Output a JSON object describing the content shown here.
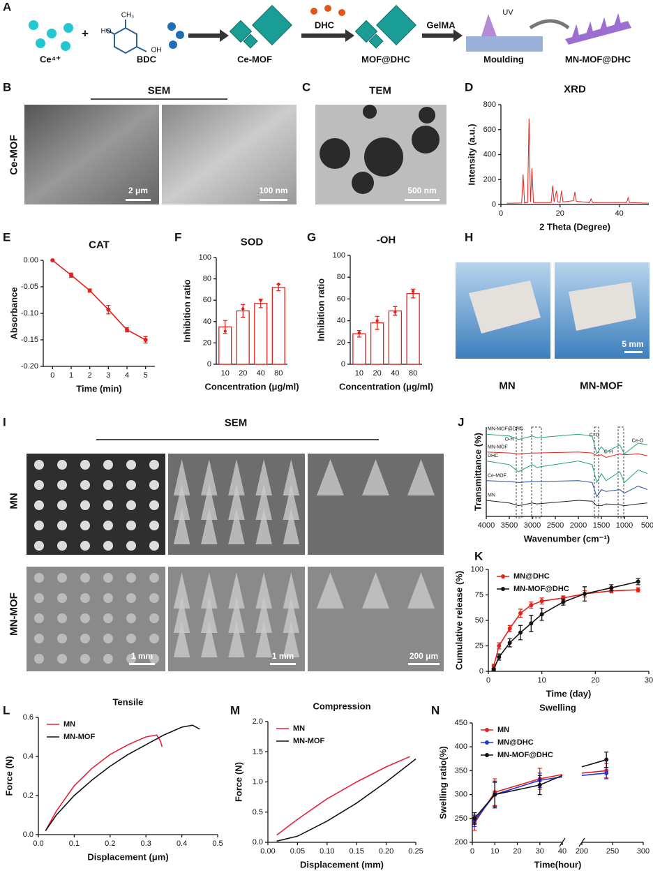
{
  "panel_labels": [
    "A",
    "B",
    "C",
    "D",
    "E",
    "F",
    "G",
    "H",
    "I",
    "J",
    "K",
    "L",
    "M",
    "N"
  ],
  "schematic": {
    "ion": "Ce⁴⁺",
    "plus": "+",
    "linker": "BDC",
    "linker_groups": [
      "HO",
      "CH₃",
      "OH"
    ],
    "mof": "Ce-MOF",
    "drug": "DHC",
    "loaded": "MOF@DHC",
    "matrix": "GelMA",
    "uv": "UV",
    "step": "Moulding",
    "product": "MN-MOF@DHC"
  },
  "sem_panel": {
    "title": "SEM",
    "row_label": "Ce-MOF",
    "scales": [
      "2 μm",
      "100 nm"
    ]
  },
  "tem_panel": {
    "title": "TEM",
    "scale": "500 nm"
  },
  "photo_panel": {
    "labels": [
      "MN",
      "MN-MOF"
    ],
    "scale": "5 mm"
  },
  "mn_sem_panel": {
    "title": "SEM",
    "rows": [
      "MN",
      "MN-MOF"
    ],
    "scales": [
      "1 mm",
      "1 mm",
      "200 μm"
    ]
  },
  "chart_data": [
    {
      "type": "line",
      "title": "XRD",
      "xlabel": "2 Theta (Degree)",
      "ylabel": "Intensity (a.u.)",
      "xlim": [
        0,
        50
      ],
      "xticks": [
        0,
        20,
        40
      ],
      "ylim": [
        0,
        800
      ],
      "yticks": [
        0,
        200,
        400,
        600,
        800
      ],
      "x": [
        2,
        7,
        7.5,
        8,
        9,
        9.5,
        10,
        10.5,
        11,
        17,
        17.5,
        18,
        18.8,
        19.2,
        20,
        20.5,
        21,
        24.5,
        25,
        25.5,
        30,
        30.5,
        31,
        42.5,
        43,
        43.5,
        50
      ],
      "series": [
        {
          "color": "#e8201a",
          "values": [
            10,
            12,
            240,
            12,
            15,
            690,
            20,
            290,
            15,
            15,
            150,
            20,
            110,
            20,
            15,
            110,
            20,
            30,
            100,
            25,
            15,
            45,
            15,
            15,
            55,
            15,
            10
          ]
        }
      ]
    },
    {
      "type": "line",
      "title": "CAT",
      "xlabel": "Time (min)",
      "ylabel": "Absorbance",
      "xlim": [
        -0.5,
        5.5
      ],
      "xticks": [
        0,
        1,
        2,
        3,
        4,
        5
      ],
      "ylim": [
        -0.2,
        0
      ],
      "yticks": [
        {
          "value": 0,
          "label": "0.00"
        },
        {
          "value": -0.05,
          "label": "-0.05"
        },
        {
          "value": -0.1,
          "label": "-0.10"
        },
        {
          "value": -0.15,
          "label": "-0.15"
        },
        {
          "value": -0.2,
          "label": "-0.20"
        }
      ],
      "markers": true,
      "x": [
        0,
        1,
        2,
        3,
        4,
        5
      ],
      "series": [
        {
          "color": "#e8201a",
          "values": [
            0,
            -0.028,
            -0.057,
            -0.093,
            -0.131,
            -0.15
          ],
          "errors": [
            0.001,
            0.004,
            0.003,
            0.008,
            0.004,
            0.006
          ]
        }
      ]
    },
    {
      "type": "bar",
      "title": "SOD",
      "xlabel": "Concentration (μg/ml)",
      "ylabel": "Inhibition ratio",
      "categories": [
        "10",
        "20",
        "40",
        "80"
      ],
      "values": [
        35,
        50,
        57,
        72
      ],
      "errors": [
        6,
        6,
        4,
        3
      ],
      "points": [
        31,
        52,
        60,
        75
      ],
      "color": "#e8201a",
      "ylim": [
        0,
        100
      ],
      "yticks": [
        0,
        20,
        40,
        60,
        80,
        100
      ]
    },
    {
      "type": "bar",
      "title": "-OH",
      "xlabel": "Concentration (μg/ml)",
      "ylabel": "Inhibition ratio",
      "categories": [
        "10",
        "20",
        "40",
        "80"
      ],
      "values": [
        28,
        38,
        49,
        65
      ],
      "errors": [
        3,
        6,
        4,
        4
      ],
      "points": [
        29,
        40,
        48,
        67
      ],
      "color": "#e8201a",
      "ylim": [
        0,
        100
      ],
      "yticks": [
        0,
        20,
        40,
        60,
        80,
        100
      ]
    },
    {
      "type": "line",
      "xlabel": "Time (day)",
      "ylabel": "Cumulative release (%)",
      "xlim": [
        0,
        30
      ],
      "xticks": [
        0,
        10,
        20,
        30
      ],
      "ylim": [
        0,
        100
      ],
      "yticks": [
        0,
        25,
        50,
        75,
        100
      ],
      "legend": "top-left",
      "markers": true,
      "x": [
        1,
        2,
        4,
        6,
        8,
        10,
        14,
        18,
        23,
        28
      ],
      "series": [
        {
          "name": "MN@DHC",
          "color": "#e8201a",
          "values": [
            5,
            25,
            42,
            57,
            65,
            69,
            72,
            76,
            79,
            80
          ],
          "errors": [
            2,
            3,
            3,
            4,
            3,
            3,
            2,
            3,
            2,
            2
          ]
        },
        {
          "name": "MN-MOF@DHC",
          "color": "#111111",
          "values": [
            2,
            14,
            28,
            38,
            47,
            56,
            68,
            76,
            82,
            88
          ],
          "errors": [
            1,
            3,
            4,
            7,
            8,
            6,
            3,
            7,
            3,
            3
          ]
        }
      ]
    },
    {
      "type": "line",
      "title": "Tensile",
      "xlabel": "Displacement (μm)",
      "ylabel": "Force (N)",
      "xlim": [
        0,
        0.5
      ],
      "xticks": [
        {
          "value": 0,
          "label": "0.0"
        },
        0.1,
        0.2,
        0.3,
        0.4,
        0.5
      ],
      "ylim": [
        0,
        0.6
      ],
      "yticks": [
        {
          "value": 0,
          "label": "0.0"
        },
        0.2,
        0.4,
        0.6
      ],
      "legend": "top-left",
      "series": [
        {
          "name": "MN",
          "color": "#e8203a",
          "x": [
            0.02,
            0.05,
            0.1,
            0.15,
            0.2,
            0.25,
            0.3,
            0.33,
            0.34,
            0.345
          ],
          "values": [
            0.02,
            0.12,
            0.25,
            0.34,
            0.41,
            0.46,
            0.5,
            0.51,
            0.48,
            0.45
          ]
        },
        {
          "name": "MN-MOF",
          "color": "#111111",
          "x": [
            0.02,
            0.05,
            0.1,
            0.15,
            0.2,
            0.25,
            0.3,
            0.35,
            0.4,
            0.43,
            0.45
          ],
          "values": [
            0.02,
            0.1,
            0.2,
            0.28,
            0.35,
            0.41,
            0.46,
            0.51,
            0.55,
            0.56,
            0.54
          ]
        }
      ]
    },
    {
      "type": "line",
      "title": "Compression",
      "xlabel": "Displacement (mm)",
      "ylabel": "Force (N)",
      "xlim": [
        0,
        0.25
      ],
      "xticks": [
        {
          "value": 0,
          "label": "0.00"
        },
        0.05,
        {
          "value": 0.1,
          "label": "0.10"
        },
        0.15,
        {
          "value": 0.2,
          "label": "0.20"
        },
        0.25
      ],
      "ylim": [
        0,
        2
      ],
      "yticks": [
        {
          "value": 0,
          "label": "0.0"
        },
        0.5,
        {
          "value": 1,
          "label": "1.0"
        },
        1.5,
        {
          "value": 2,
          "label": "2.0"
        }
      ],
      "legend": "top-left",
      "series": [
        {
          "name": "MN",
          "color": "#e8203a",
          "x": [
            0.015,
            0.05,
            0.1,
            0.15,
            0.2,
            0.24
          ],
          "values": [
            0.12,
            0.38,
            0.72,
            1.0,
            1.25,
            1.42
          ]
        },
        {
          "name": "MN-MOF",
          "color": "#111111",
          "x": [
            0.015,
            0.05,
            0.1,
            0.15,
            0.2,
            0.25
          ],
          "values": [
            0.02,
            0.1,
            0.35,
            0.65,
            1.0,
            1.38
          ]
        }
      ]
    },
    {
      "type": "line",
      "title": "Swelling",
      "xlabel": "Time(hour)",
      "ylabel": "Swelling ratio(%)",
      "xlim": [
        0,
        300
      ],
      "xbreak": [
        40,
        200
      ],
      "xticks": [
        0,
        10,
        20,
        30,
        40,
        200,
        250,
        300
      ],
      "ylim": [
        200,
        450
      ],
      "yticks": [
        200,
        250,
        300,
        350,
        400,
        450
      ],
      "legend": "top-left",
      "markers": true,
      "x": [
        1,
        10,
        30,
        40,
        200,
        240
      ],
      "series": [
        {
          "name": "MN",
          "color": "#e8201a",
          "values": [
            240,
            305,
            333,
            342,
            345,
            350
          ],
          "errors": [
            15,
            28,
            22,
            null,
            null,
            15
          ]
        },
        {
          "name": "MN@DHC",
          "color": "#2233dd",
          "values": [
            245,
            300,
            330,
            337,
            340,
            345
          ],
          "errors": [
            12,
            25,
            15,
            null,
            null,
            12
          ]
        },
        {
          "name": "MN-MOF@DHC",
          "color": "#111111",
          "values": [
            250,
            300,
            320,
            340,
            358,
            373
          ],
          "errors": [
            12,
            28,
            20,
            null,
            null,
            16
          ]
        }
      ]
    },
    {
      "type": "line",
      "xlabel": "Wavenumber (cm⁻¹)",
      "ylabel": "Transmittance (%)",
      "xlim": [
        4000,
        500
      ],
      "xticks": [
        4000,
        3500,
        3000,
        2500,
        2000,
        1500,
        1000,
        500
      ],
      "ylim": [
        0,
        100
      ],
      "legend": "inline",
      "annotations": [
        "O-H",
        "C=O",
        "C-H",
        "Ce-O"
      ],
      "x": [
        4000,
        3500,
        3300,
        3000,
        2900,
        2000,
        1700,
        1600,
        1500,
        1400,
        1100,
        1000,
        700,
        500
      ],
      "series": [
        {
          "name": "MN-MOF@DHC",
          "color": "#1aa37a",
          "values": [
            92,
            90,
            86,
            90,
            88,
            92,
            90,
            70,
            78,
            72,
            80,
            70,
            82,
            80
          ]
        },
        {
          "name": "MN-MOF",
          "color": "#e8201a",
          "values": [
            72,
            71,
            70,
            71,
            71,
            72,
            71,
            68,
            69,
            66,
            70,
            69,
            70,
            68
          ]
        },
        {
          "name": "DHC",
          "color": "#1aa37a",
          "values": [
            62,
            58,
            50,
            58,
            55,
            62,
            58,
            38,
            48,
            40,
            50,
            38,
            52,
            48
          ]
        },
        {
          "name": "Ce-MOF",
          "color": "#1f4e9a",
          "values": [
            40,
            39,
            38,
            39,
            39,
            40,
            38,
            22,
            30,
            28,
            30,
            26,
            34,
            30
          ]
        },
        {
          "name": "MN",
          "color": "#222222",
          "values": [
            18,
            15,
            12,
            15,
            14,
            18,
            17,
            12,
            12,
            14,
            13,
            12,
            14,
            15
          ]
        }
      ]
    }
  ]
}
